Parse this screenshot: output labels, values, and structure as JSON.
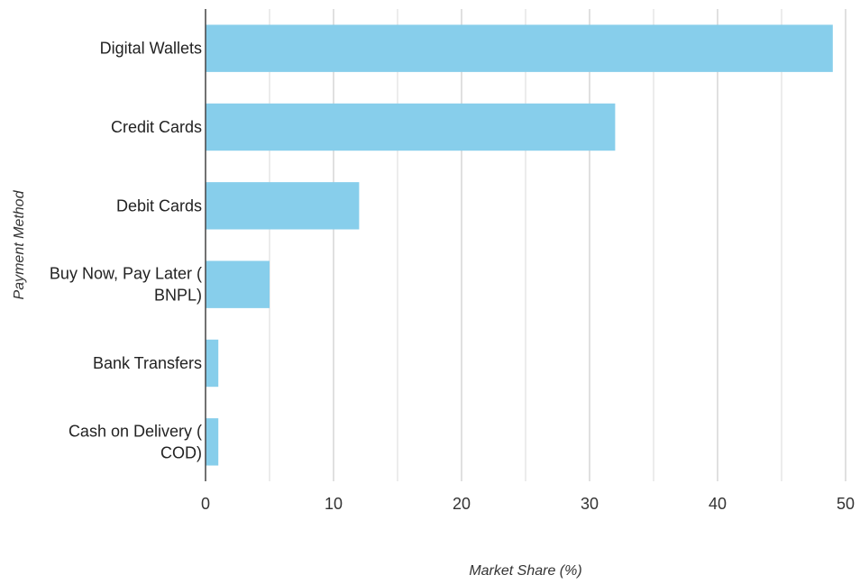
{
  "chart_data": {
    "type": "bar",
    "orientation": "horizontal",
    "categories": [
      "Digital Wallets",
      "Credit Cards",
      "Debit Cards",
      "Buy Now, Pay Later ( BNPL)",
      "Bank Transfers",
      "Cash on Delivery ( COD)"
    ],
    "category_lines": [
      [
        "Digital Wallets"
      ],
      [
        "Credit Cards"
      ],
      [
        "Debit Cards"
      ],
      [
        "Buy Now, Pay Later (",
        "BNPL)"
      ],
      [
        "Bank Transfers"
      ],
      [
        "Cash on Delivery (",
        "COD)"
      ]
    ],
    "values": [
      49,
      32,
      12,
      5,
      1,
      1
    ],
    "xlabel": "Market Share (%)",
    "ylabel": "Payment Method",
    "xlim": [
      0,
      50
    ],
    "x_ticks": [
      0,
      10,
      20,
      30,
      40,
      50
    ],
    "grid": true,
    "legend": "none",
    "bar_color": "#87CEEB",
    "grid_color": "#d9d9d9",
    "axis_color": "#444444"
  }
}
